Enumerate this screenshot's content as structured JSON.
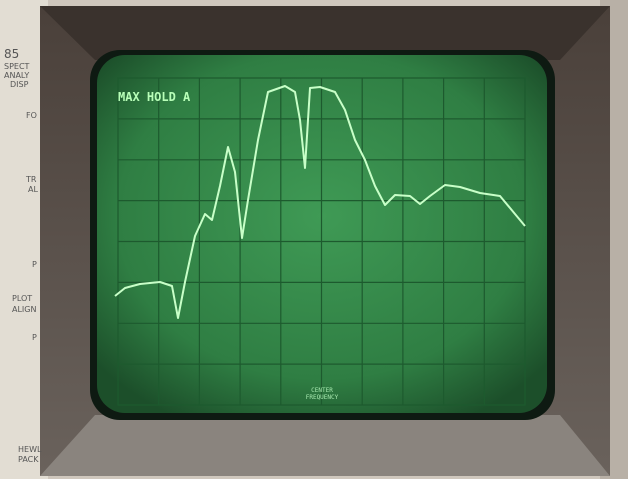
{
  "panel": {
    "model": "85",
    "lines": [
      "SPECT",
      "ANALY",
      "DISP"
    ],
    "labels": [
      "FO",
      "TR",
      "AL",
      "P",
      "PLOT",
      "ALIGN",
      "P"
    ],
    "maker": [
      "HEWL",
      "PACK"
    ]
  },
  "screen": {
    "annotation": "MAX HOLD A",
    "center_label": [
      "CENTER",
      "FREQUENCY"
    ]
  }
}
